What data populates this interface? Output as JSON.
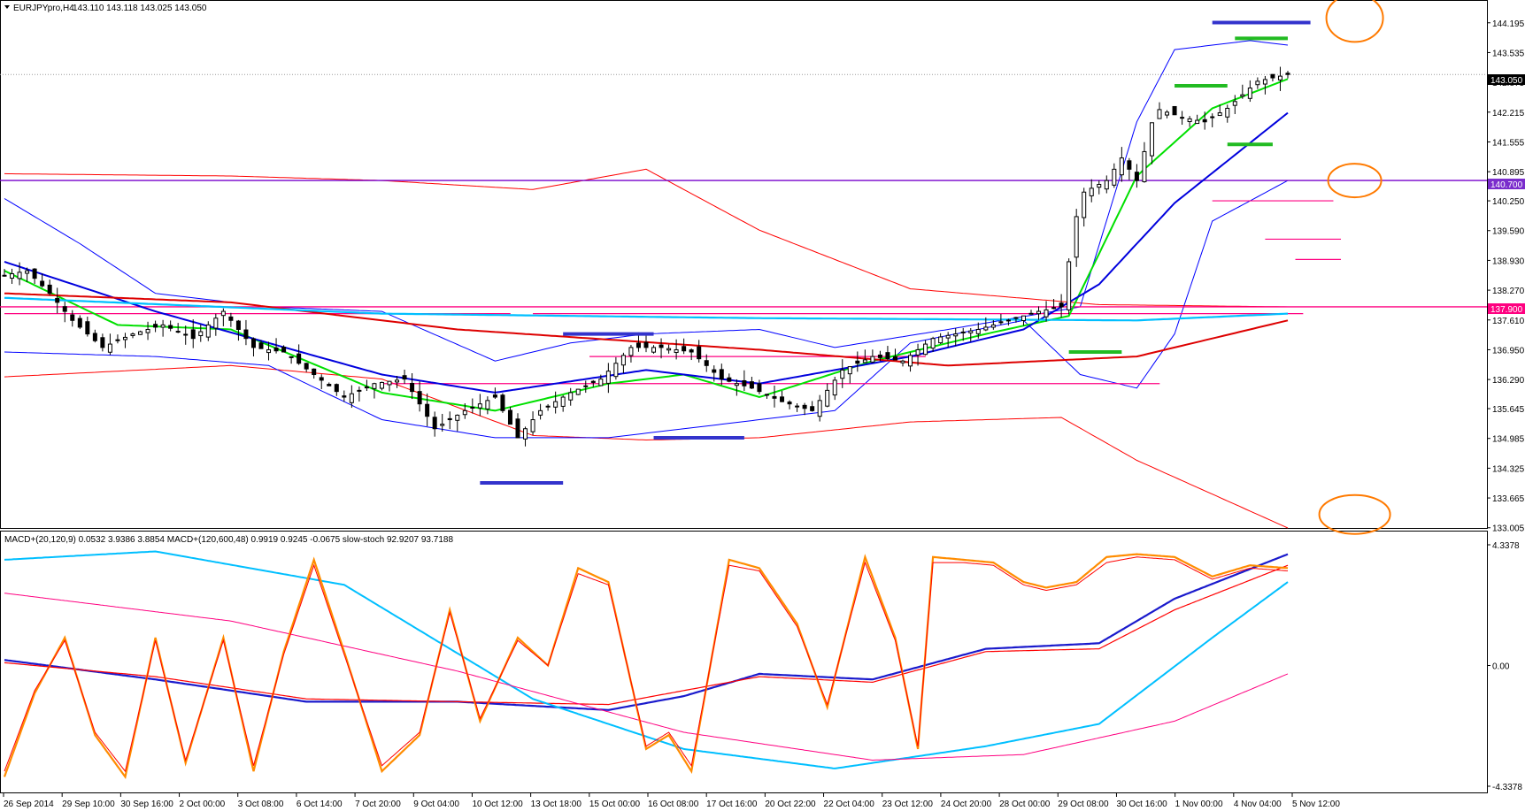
{
  "header": {
    "symbol": "EURJPYpro,H4",
    "ohlc": "143.110 143.118 143.025 143.050"
  },
  "indicator_header": {
    "text": "MACD+(20,120,9) 0.0532 3.9386 3.8854   MACD+(120,600,48) 0.9919 0.9245 -0.0675   slow-stoch 92.9207 93.7188"
  },
  "price_tags": {
    "current": "143.050",
    "level_purple": "140.700",
    "level_pink": "137.900"
  },
  "colors": {
    "candle": "#000000",
    "ema_green": "#00e000",
    "ema_blue": "#0000dd",
    "ma_red": "#dd0000",
    "bollinger": "#0000ff",
    "envelope": "#ff0000",
    "cyan": "#00bfff",
    "magenta": "#ff0080",
    "purple": "#7700cc",
    "annotation_orange": "#ff7a00",
    "stoch_orange": "#ff8c00"
  },
  "chart_data": [
    {
      "type": "candlestick",
      "title": "EURJPYpro,H4",
      "y_ticks": [
        "144.195",
        "143.535",
        "142.875",
        "142.215",
        "141.555",
        "140.895",
        "140.250",
        "139.590",
        "138.930",
        "138.270",
        "137.610",
        "136.950",
        "136.290",
        "135.645",
        "134.985",
        "134.325",
        "133.665",
        "133.005"
      ],
      "x_ticks": [
        "26 Sep 2014",
        "29 Sep 10:00",
        "30 Sep 16:00",
        "2 Oct 00:00",
        "3 Oct 08:00",
        "6 Oct 14:00",
        "7 Oct 20:00",
        "9 Oct 04:00",
        "10 Oct 12:00",
        "13 Oct 18:00",
        "15 Oct 00:00",
        "16 Oct 08:00",
        "17 Oct 16:00",
        "20 Oct 22:00",
        "22 Oct 04:00",
        "23 Oct 12:00",
        "24 Oct 20:00",
        "28 Oct 00:00",
        "29 Oct 08:00",
        "30 Oct 16:00",
        "1 Nov 00:00",
        "4 Nov 04:00",
        "5 Nov 12:00"
      ],
      "ylim": [
        133.0,
        144.7
      ],
      "current_price": 143.05,
      "levels": [
        140.7,
        137.9
      ],
      "price_path": [
        [
          0,
          138.6
        ],
        [
          6,
          138.7
        ],
        [
          12,
          138.2
        ],
        [
          18,
          137.6
        ],
        [
          26,
          137.0
        ],
        [
          34,
          137.3
        ],
        [
          42,
          137.5
        ],
        [
          50,
          137.2
        ],
        [
          58,
          137.8
        ],
        [
          66,
          137.0
        ],
        [
          74,
          136.9
        ],
        [
          82,
          136.4
        ],
        [
          90,
          135.9
        ],
        [
          98,
          136.2
        ],
        [
          106,
          136.3
        ],
        [
          114,
          135.2
        ],
        [
          122,
          135.6
        ],
        [
          130,
          135.9
        ],
        [
          136,
          135.0
        ],
        [
          142,
          135.6
        ],
        [
          150,
          136.0
        ],
        [
          158,
          136.3
        ],
        [
          166,
          137.0
        ],
        [
          174,
          137.0
        ],
        [
          182,
          136.9
        ],
        [
          190,
          136.3
        ],
        [
          198,
          136.1
        ],
        [
          206,
          135.8
        ],
        [
          214,
          135.6
        ],
        [
          222,
          136.5
        ],
        [
          230,
          136.8
        ],
        [
          238,
          136.7
        ],
        [
          246,
          137.2
        ],
        [
          252,
          137.3
        ],
        [
          258,
          137.4
        ],
        [
          266,
          137.6
        ],
        [
          274,
          137.8
        ],
        [
          280,
          137.9
        ],
        [
          285,
          140.4
        ],
        [
          292,
          140.7
        ],
        [
          296,
          141.2
        ],
        [
          300,
          140.7
        ],
        [
          305,
          142.3
        ],
        [
          312,
          142.1
        ],
        [
          318,
          142.0
        ],
        [
          324,
          142.3
        ],
        [
          332,
          142.9
        ],
        [
          340,
          143.05
        ]
      ],
      "series": [
        {
          "name": "EMA green",
          "values": [
            [
              0,
              138.7
            ],
            [
              30,
              137.5
            ],
            [
              60,
              137.4
            ],
            [
              100,
              136.0
            ],
            [
              130,
              135.6
            ],
            [
              160,
              136.2
            ],
            [
              180,
              136.4
            ],
            [
              200,
              135.9
            ],
            [
              230,
              136.7
            ],
            [
              260,
              137.3
            ],
            [
              282,
              137.7
            ],
            [
              300,
              140.8
            ],
            [
              320,
              142.3
            ],
            [
              340,
              142.95
            ]
          ]
        },
        {
          "name": "EMA blue",
          "values": [
            [
              0,
              138.9
            ],
            [
              40,
              137.8
            ],
            [
              100,
              136.4
            ],
            [
              130,
              136.0
            ],
            [
              170,
              136.5
            ],
            [
              200,
              136.2
            ],
            [
              240,
              136.8
            ],
            [
              270,
              137.4
            ],
            [
              290,
              138.4
            ],
            [
              310,
              140.2
            ],
            [
              340,
              142.2
            ]
          ]
        },
        {
          "name": "MA red",
          "values": [
            [
              0,
              138.2
            ],
            [
              60,
              138.0
            ],
            [
              120,
              137.4
            ],
            [
              200,
              136.95
            ],
            [
              250,
              136.6
            ],
            [
              300,
              136.8
            ],
            [
              340,
              137.6
            ]
          ]
        },
        {
          "name": "Cyan",
          "values": [
            [
              0,
              138.1
            ],
            [
              100,
              137.75
            ],
            [
              200,
              137.65
            ],
            [
              300,
              137.6
            ],
            [
              340,
              137.75
            ]
          ]
        }
      ]
    },
    {
      "type": "line",
      "title": "MACD+(20,120,9) / MACD+(120,600,48) / slow-stoch",
      "y_ticks": [
        "4.3378",
        "0.00",
        "-4.3378"
      ],
      "ylim": [
        -4.3378,
        4.3378
      ],
      "series": [
        {
          "name": "MACD+(20,120,9) main",
          "values": [
            [
              0,
              0.2
            ],
            [
              40,
              -0.5
            ],
            [
              80,
              -1.3
            ],
            [
              120,
              -1.3
            ],
            [
              160,
              -1.6
            ],
            [
              180,
              -1.1
            ],
            [
              200,
              -0.3
            ],
            [
              230,
              -0.5
            ],
            [
              260,
              0.6
            ],
            [
              290,
              0.8
            ],
            [
              310,
              2.4
            ],
            [
              340,
              4.0
            ]
          ]
        },
        {
          "name": "MACD+(20,120,9) signal",
          "values": [
            [
              0,
              0.1
            ],
            [
              40,
              -0.4
            ],
            [
              80,
              -1.2
            ],
            [
              120,
              -1.3
            ],
            [
              160,
              -1.4
            ],
            [
              200,
              -0.4
            ],
            [
              230,
              -0.6
            ],
            [
              260,
              0.5
            ],
            [
              290,
              0.6
            ],
            [
              310,
              2.0
            ],
            [
              340,
              3.6
            ]
          ]
        },
        {
          "name": "MACD+(120,600,48) main",
          "values": [
            [
              0,
              3.8
            ],
            [
              40,
              4.1
            ],
            [
              90,
              2.9
            ],
            [
              140,
              -1.2
            ],
            [
              180,
              -3.0
            ],
            [
              220,
              -3.7
            ],
            [
              260,
              -2.9
            ],
            [
              290,
              -2.1
            ],
            [
              320,
              1.0
            ],
            [
              340,
              3.0
            ]
          ]
        },
        {
          "name": "MACD+(120,600,48) signal",
          "values": [
            [
              0,
              2.6
            ],
            [
              60,
              1.6
            ],
            [
              120,
              -0.2
            ],
            [
              180,
              -2.4
            ],
            [
              230,
              -3.4
            ],
            [
              270,
              -3.2
            ],
            [
              310,
              -2.0
            ],
            [
              340,
              -0.3
            ]
          ]
        },
        {
          "name": "slow-stoch %K",
          "values": [
            [
              0,
              -4.0
            ],
            [
              8,
              -1.0
            ],
            [
              16,
              1.0
            ],
            [
              24,
              -2.5
            ],
            [
              32,
              -4.0
            ],
            [
              40,
              1.0
            ],
            [
              48,
              -3.5
            ],
            [
              58,
              1.0
            ],
            [
              66,
              -3.8
            ],
            [
              74,
              0.5
            ],
            [
              82,
              3.8
            ],
            [
              90,
              0.5
            ],
            [
              100,
              -3.8
            ],
            [
              110,
              -2.5
            ],
            [
              118,
              2.0
            ],
            [
              126,
              -2.0
            ],
            [
              136,
              1.0
            ],
            [
              144,
              0.0
            ],
            [
              152,
              3.5
            ],
            [
              160,
              3.0
            ],
            [
              170,
              -3.0
            ],
            [
              176,
              -2.5
            ],
            [
              182,
              -3.8
            ],
            [
              192,
              3.8
            ],
            [
              200,
              3.5
            ],
            [
              210,
              1.5
            ],
            [
              218,
              -1.5
            ],
            [
              228,
              3.9
            ],
            [
              236,
              1.0
            ],
            [
              242,
              -3.0
            ],
            [
              246,
              3.9
            ],
            [
              254,
              3.8
            ],
            [
              262,
              3.7
            ],
            [
              270,
              3.0
            ],
            [
              276,
              2.8
            ],
            [
              284,
              3.0
            ],
            [
              292,
              3.9
            ],
            [
              300,
              4.0
            ],
            [
              310,
              3.9
            ],
            [
              320,
              3.2
            ],
            [
              330,
              3.6
            ],
            [
              340,
              3.5
            ]
          ]
        },
        {
          "name": "slow-stoch %D",
          "values": [
            [
              0,
              -3.8
            ],
            [
              8,
              -0.9
            ],
            [
              16,
              0.9
            ],
            [
              24,
              -2.4
            ],
            [
              32,
              -3.8
            ],
            [
              40,
              0.9
            ],
            [
              48,
              -3.4
            ],
            [
              58,
              0.9
            ],
            [
              66,
              -3.6
            ],
            [
              74,
              0.4
            ],
            [
              82,
              3.6
            ],
            [
              90,
              0.4
            ],
            [
              100,
              -3.6
            ],
            [
              110,
              -2.4
            ],
            [
              118,
              1.9
            ],
            [
              126,
              -1.9
            ],
            [
              136,
              0.9
            ],
            [
              144,
              0.0
            ],
            [
              152,
              3.3
            ],
            [
              160,
              2.9
            ],
            [
              170,
              -2.9
            ],
            [
              176,
              -2.4
            ],
            [
              182,
              -3.6
            ],
            [
              192,
              3.6
            ],
            [
              200,
              3.4
            ],
            [
              210,
              1.4
            ],
            [
              218,
              -1.4
            ],
            [
              228,
              3.7
            ],
            [
              236,
              0.9
            ],
            [
              242,
              -2.9
            ],
            [
              246,
              3.7
            ],
            [
              254,
              3.7
            ],
            [
              262,
              3.6
            ],
            [
              270,
              2.9
            ],
            [
              276,
              2.7
            ],
            [
              284,
              2.9
            ],
            [
              292,
              3.7
            ],
            [
              300,
              3.9
            ],
            [
              310,
              3.8
            ],
            [
              320,
              3.1
            ],
            [
              330,
              3.5
            ],
            [
              340,
              3.4
            ]
          ]
        }
      ]
    }
  ]
}
